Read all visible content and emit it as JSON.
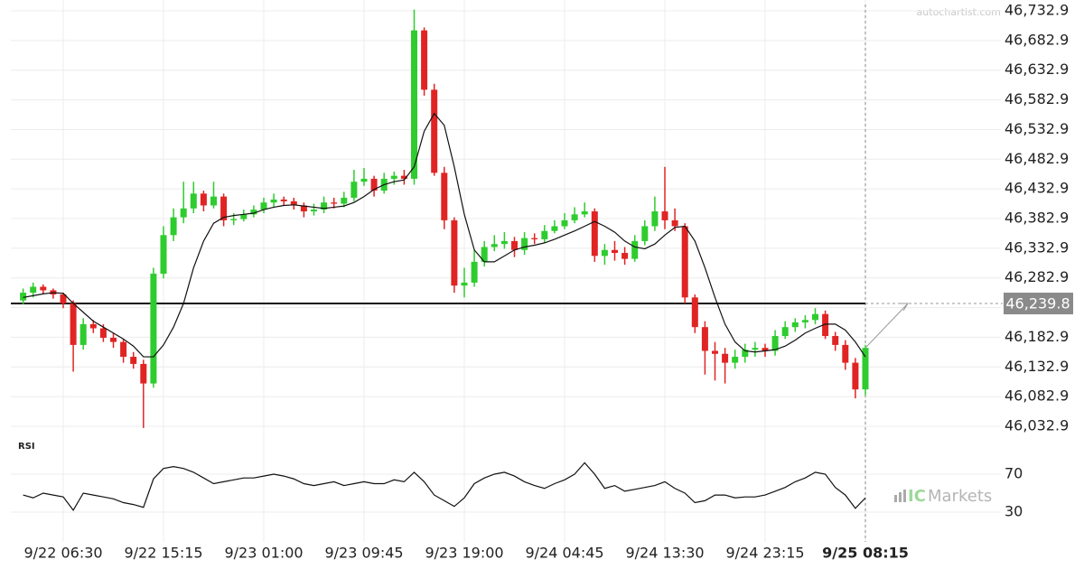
{
  "chart_data": [
    {
      "type": "candlestick",
      "categories": [
        null,
        null,
        null,
        null,
        "9/22 06:30",
        null,
        null,
        null,
        null,
        null,
        null,
        null,
        null,
        null,
        "9/22 15:15",
        null,
        null,
        null,
        null,
        null,
        null,
        null,
        null,
        null,
        "9/23 01:00",
        null,
        null,
        null,
        null,
        null,
        null,
        null,
        null,
        null,
        "9/23 09:45",
        null,
        null,
        null,
        null,
        null,
        null,
        null,
        null,
        null,
        "9/23 19:00",
        null,
        null,
        null,
        null,
        null,
        null,
        null,
        null,
        null,
        "9/24 04:45",
        null,
        null,
        null,
        null,
        null,
        null,
        null,
        null,
        null,
        "9/24 13:30",
        null,
        null,
        null,
        null,
        null,
        null,
        null,
        null,
        null,
        "9/24 23:15",
        null,
        null,
        null,
        null,
        null,
        null,
        null,
        null,
        null,
        "9/25 08:15"
      ],
      "open": [
        46245,
        46258,
        46268,
        46262,
        46255,
        46240,
        46170,
        46205,
        46198,
        46182,
        46175,
        46150,
        46138,
        46105,
        46290,
        46355,
        46385,
        46400,
        46425,
        46405,
        46420,
        46380,
        46382,
        46390,
        46398,
        46410,
        46415,
        46412,
        46405,
        46395,
        46398,
        46410,
        46408,
        46418,
        46445,
        46450,
        46430,
        46450,
        46455,
        46450,
        46700,
        46600,
        46460,
        46380,
        46270,
        46275,
        46310,
        46335,
        46340,
        46345,
        46330,
        46350,
        46348,
        46362,
        46370,
        46380,
        46390,
        46395,
        46320,
        46330,
        46325,
        46315,
        46345,
        46370,
        46395,
        46380,
        46370,
        46250,
        46200,
        46160,
        46155,
        46140,
        46150,
        46162,
        46165,
        46160,
        46185,
        46200,
        46208,
        46212,
        46222,
        46185,
        46170,
        46140,
        46095
      ],
      "high": [
        46265,
        46275,
        46272,
        46265,
        46258,
        46245,
        46215,
        46212,
        46205,
        46190,
        46180,
        46158,
        46145,
        46300,
        46370,
        46400,
        46445,
        46445,
        46430,
        46445,
        46425,
        46392,
        46398,
        46405,
        46418,
        46425,
        46420,
        46418,
        46410,
        46408,
        46420,
        46418,
        46428,
        46465,
        46468,
        46455,
        46460,
        46462,
        46465,
        46735,
        46705,
        46610,
        46470,
        46385,
        46300,
        46330,
        46345,
        46355,
        46360,
        46352,
        46360,
        46358,
        46372,
        46380,
        46392,
        46402,
        46410,
        46400,
        46340,
        46345,
        46335,
        46355,
        46380,
        46420,
        46470,
        46400,
        46375,
        46255,
        46210,
        46175,
        46165,
        46162,
        46172,
        46175,
        46172,
        46195,
        46210,
        46215,
        46220,
        46232,
        46228,
        46192,
        46178,
        46148,
        46170
      ],
      "low": [
        46238,
        46250,
        46255,
        46248,
        46232,
        46125,
        46162,
        46190,
        46175,
        46165,
        46140,
        46130,
        46030,
        46098,
        46282,
        46345,
        46375,
        46392,
        46395,
        46400,
        46370,
        46372,
        46378,
        46385,
        46392,
        46402,
        46405,
        46398,
        46385,
        46388,
        46392,
        46400,
        46402,
        46412,
        46438,
        46420,
        46425,
        46440,
        46440,
        46440,
        46590,
        46455,
        46365,
        46258,
        46250,
        46268,
        46302,
        46328,
        46332,
        46318,
        46322,
        46340,
        46342,
        46358,
        46365,
        46375,
        46385,
        46310,
        46305,
        46312,
        46305,
        46310,
        46338,
        46362,
        46365,
        46362,
        46240,
        46190,
        46120,
        46110,
        46105,
        46130,
        46140,
        46150,
        46150,
        46152,
        46180,
        46192,
        46198,
        46205,
        46180,
        46160,
        46128,
        46080,
        46085
      ],
      "close": [
        46258,
        46268,
        46262,
        46255,
        46240,
        46170,
        46205,
        46198,
        46182,
        46175,
        46150,
        46138,
        46105,
        46290,
        46355,
        46385,
        46400,
        46425,
        46405,
        46420,
        46380,
        46382,
        46390,
        46398,
        46410,
        46415,
        46412,
        46405,
        46395,
        46398,
        46410,
        46408,
        46418,
        46445,
        46450,
        46430,
        46450,
        46455,
        46450,
        46700,
        46600,
        46460,
        46380,
        46270,
        46275,
        46310,
        46335,
        46340,
        46345,
        46330,
        46350,
        46348,
        46362,
        46370,
        46380,
        46390,
        46395,
        46320,
        46330,
        46325,
        46315,
        46345,
        46370,
        46395,
        46380,
        46370,
        46250,
        46200,
        46160,
        46155,
        46140,
        46150,
        46162,
        46165,
        46160,
        46185,
        46200,
        46208,
        46212,
        46222,
        46185,
        46170,
        46140,
        46095,
        46165
      ],
      "ma": [
        46250,
        46253,
        46256,
        46258,
        46257,
        46240,
        46225,
        46210,
        46200,
        46190,
        46180,
        46168,
        46150,
        46150,
        46170,
        46200,
        46240,
        46300,
        46345,
        46375,
        46385,
        46388,
        46390,
        46392,
        46398,
        46402,
        46405,
        46406,
        46404,
        46402,
        46400,
        46402,
        46404,
        46410,
        46420,
        46432,
        46440,
        46445,
        46448,
        46470,
        46530,
        46560,
        46540,
        46470,
        46390,
        46330,
        46310,
        46310,
        46320,
        46330,
        46335,
        46338,
        46342,
        46348,
        46355,
        46362,
        46370,
        46378,
        46370,
        46360,
        46345,
        46335,
        46332,
        46340,
        46355,
        46368,
        46370,
        46345,
        46300,
        46250,
        46205,
        46175,
        46160,
        46158,
        46160,
        46162,
        46168,
        46178,
        46190,
        46198,
        46205,
        46205,
        46195,
        46175,
        46150
      ],
      "up_color": "#2ecc2e",
      "down_color": "#e02424",
      "ma_color": "#111111",
      "ylim": [
        46020.7,
        46751.2
      ],
      "yticks": [
        {
          "value": 46032.9,
          "label": "46,032.9"
        },
        {
          "value": 46082.9,
          "label": "46,082.9"
        },
        {
          "value": 46132.9,
          "label": "46,132.9"
        },
        {
          "value": 46182.9,
          "label": "46,182.9"
        },
        {
          "value": 46232.9,
          "label": "46,232.9"
        },
        {
          "value": 46282.9,
          "label": "46,282.9"
        },
        {
          "value": 46332.9,
          "label": "46,332.9"
        },
        {
          "value": 46382.9,
          "label": "46,382.9"
        },
        {
          "value": 46432.9,
          "label": "46,432.9"
        },
        {
          "value": 46482.9,
          "label": "46,482.9"
        },
        {
          "value": 46532.9,
          "label": "46,532.9"
        },
        {
          "value": 46582.9,
          "label": "46,582.9"
        },
        {
          "value": 46632.9,
          "label": "46,632.9"
        },
        {
          "value": 46682.9,
          "label": "46,682.9"
        },
        {
          "value": 46732.9,
          "label": "46,732.9"
        }
      ],
      "level": {
        "value": 46239.8,
        "label": "46,239.8"
      },
      "grid": true
    },
    {
      "type": "line",
      "title": "RSI",
      "values": [
        48,
        45,
        50,
        48,
        46,
        32,
        50,
        48,
        46,
        44,
        40,
        38,
        35,
        65,
        76,
        78,
        76,
        72,
        66,
        60,
        62,
        64,
        66,
        66,
        68,
        70,
        68,
        65,
        60,
        58,
        60,
        62,
        58,
        60,
        62,
        60,
        60,
        64,
        62,
        72,
        62,
        48,
        42,
        36,
        45,
        60,
        66,
        70,
        72,
        68,
        62,
        58,
        55,
        60,
        64,
        70,
        82,
        70,
        55,
        58,
        52,
        54,
        56,
        58,
        62,
        55,
        50,
        40,
        42,
        48,
        48,
        45,
        46,
        46,
        48,
        52,
        56,
        62,
        66,
        72,
        70,
        56,
        48,
        34,
        45
      ],
      "color": "#111111",
      "ylim": [
        0,
        100
      ],
      "yticks": [
        30,
        70
      ]
    }
  ],
  "watermark": "autochartist.com",
  "logo": {
    "brand": "IC",
    "name": "Markets"
  }
}
